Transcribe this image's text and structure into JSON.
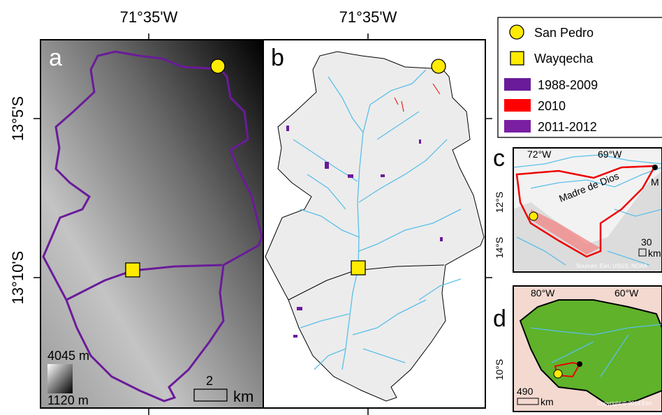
{
  "panel_a": {
    "label": "a",
    "top_longitude": "71°35'W",
    "left_latitudes": [
      "13°5'S",
      "13°10'S"
    ],
    "elevation_max": "4045 m",
    "elevation_min": "1120 m",
    "scale_value": "2",
    "scale_unit": "km"
  },
  "panel_b": {
    "label": "b",
    "top_longitude": "71°35'W"
  },
  "legend": {
    "items": [
      "San Pedro",
      "Wayqecha",
      "1988-2009",
      "2010",
      "2011-2012"
    ]
  },
  "panel_c": {
    "label": "c",
    "longitudes": [
      "72°W",
      "69°W"
    ],
    "latitudes": [
      "12°S",
      "14°S"
    ],
    "river": "Madre de Dios",
    "city": "M",
    "scale_value": "30",
    "scale_unit": "km",
    "credit": "Sources: Esri, USGS, NOAA"
  },
  "panel_d": {
    "label": "d",
    "longitudes": [
      "80°W",
      "60°W"
    ],
    "latitudes": [
      "10°S"
    ],
    "scale_value": "490",
    "scale_unit": "km",
    "credit": "Copyright:© 2014 Esri"
  }
}
